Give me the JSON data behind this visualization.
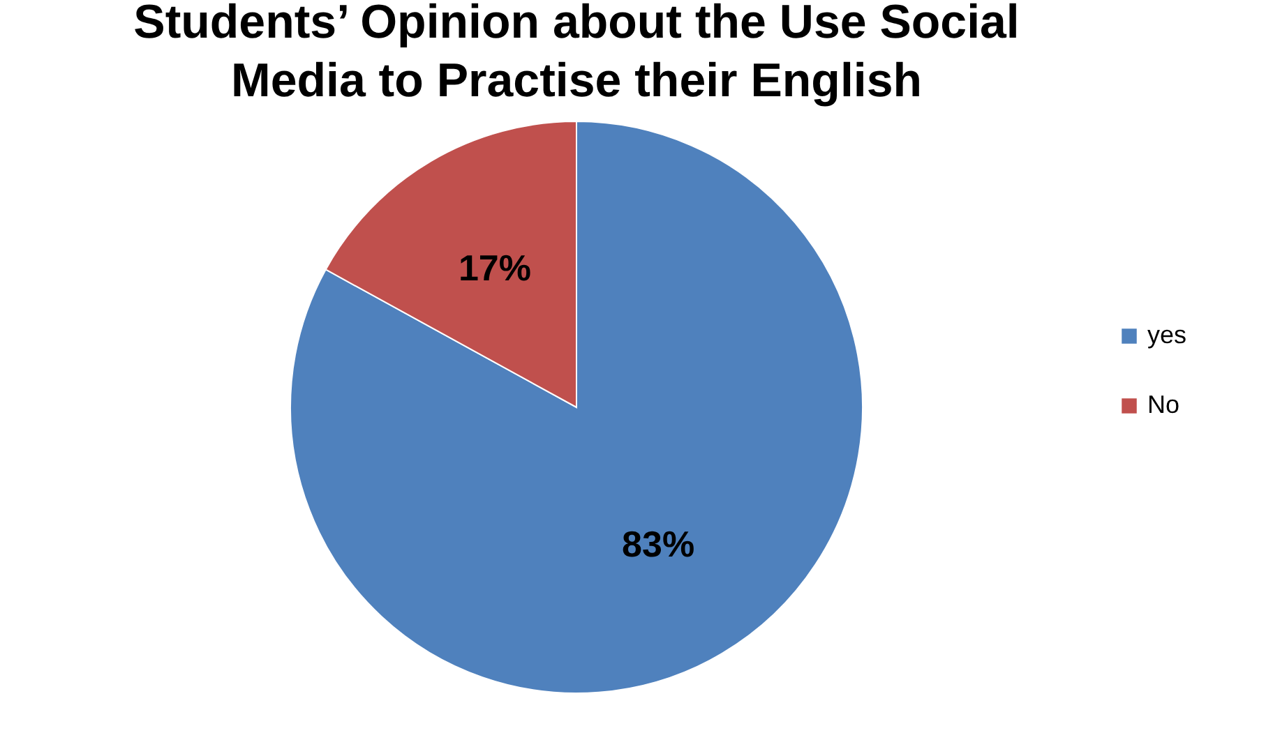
{
  "chart_data": {
    "type": "pie",
    "title": "Students’ Opinion about the Use Social\nMedia to Practise their English",
    "categories": [
      "yes",
      "No"
    ],
    "values": [
      83,
      17
    ],
    "colors": [
      "#4f81bd",
      "#c0504d"
    ],
    "value_labels": [
      "83%",
      "17%"
    ],
    "legend": "right"
  }
}
